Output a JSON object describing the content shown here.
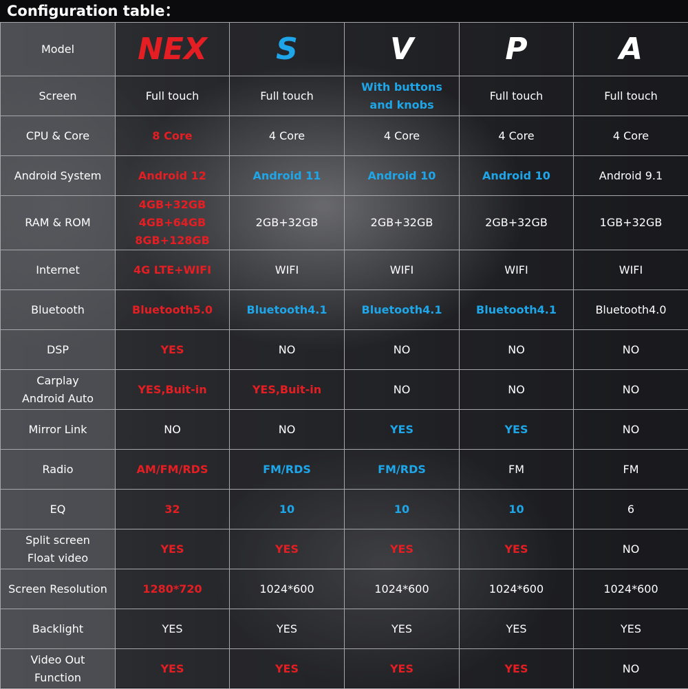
{
  "title": "Configuration table：",
  "colors": {
    "red": "#e41e22",
    "blue": "#1ea6e8",
    "white": "#ffffff"
  },
  "model": {
    "label": "Model",
    "columns": [
      {
        "name": "NEX",
        "color": "red"
      },
      {
        "name": "S",
        "color": "blue"
      },
      {
        "name": "V",
        "color": "white"
      },
      {
        "name": "P",
        "color": "white"
      },
      {
        "name": "A",
        "color": "white"
      }
    ]
  },
  "rows": [
    {
      "label": "Screen",
      "cells": [
        {
          "v": "Full touch",
          "c": "white"
        },
        {
          "v": "Full touch",
          "c": "white"
        },
        {
          "v": "With buttons\nand knobs",
          "c": "blue"
        },
        {
          "v": "Full touch",
          "c": "white"
        },
        {
          "v": "Full touch",
          "c": "white"
        }
      ]
    },
    {
      "label": "CPU & Core",
      "cells": [
        {
          "v": "8 Core",
          "c": "red"
        },
        {
          "v": "4 Core",
          "c": "white"
        },
        {
          "v": "4 Core",
          "c": "white"
        },
        {
          "v": "4 Core",
          "c": "white"
        },
        {
          "v": "4 Core",
          "c": "white"
        }
      ]
    },
    {
      "label": "Android System",
      "cells": [
        {
          "v": "Android 12",
          "c": "red"
        },
        {
          "v": "Android 11",
          "c": "blue"
        },
        {
          "v": "Android 10",
          "c": "blue"
        },
        {
          "v": "Android 10",
          "c": "blue"
        },
        {
          "v": "Android 9.1",
          "c": "white"
        }
      ]
    },
    {
      "label": "RAM & ROM",
      "cells": [
        {
          "v": "4GB+32GB\n4GB+64GB\n8GB+128GB",
          "c": "red"
        },
        {
          "v": "2GB+32GB",
          "c": "white"
        },
        {
          "v": "2GB+32GB",
          "c": "white"
        },
        {
          "v": "2GB+32GB",
          "c": "white"
        },
        {
          "v": "1GB+32GB",
          "c": "white"
        }
      ]
    },
    {
      "label": "Internet",
      "cells": [
        {
          "v": "4G LTE+WIFI",
          "c": "red"
        },
        {
          "v": "WIFI",
          "c": "white"
        },
        {
          "v": "WIFI",
          "c": "white"
        },
        {
          "v": "WIFI",
          "c": "white"
        },
        {
          "v": "WIFI",
          "c": "white"
        }
      ]
    },
    {
      "label": "Bluetooth",
      "cells": [
        {
          "v": "Bluetooth5.0",
          "c": "red"
        },
        {
          "v": "Bluetooth4.1",
          "c": "blue"
        },
        {
          "v": "Bluetooth4.1",
          "c": "blue"
        },
        {
          "v": "Bluetooth4.1",
          "c": "blue"
        },
        {
          "v": "Bluetooth4.0",
          "c": "white"
        }
      ]
    },
    {
      "label": "DSP",
      "cells": [
        {
          "v": "YES",
          "c": "red"
        },
        {
          "v": "NO",
          "c": "white"
        },
        {
          "v": "NO",
          "c": "white"
        },
        {
          "v": "NO",
          "c": "white"
        },
        {
          "v": "NO",
          "c": "white"
        }
      ]
    },
    {
      "label": "Carplay\nAndroid Auto",
      "cells": [
        {
          "v": "YES,Buit-in",
          "c": "red"
        },
        {
          "v": "YES,Buit-in",
          "c": "red"
        },
        {
          "v": "NO",
          "c": "white"
        },
        {
          "v": "NO",
          "c": "white"
        },
        {
          "v": "NO",
          "c": "white"
        }
      ]
    },
    {
      "label": "Mirror Link",
      "cells": [
        {
          "v": "NO",
          "c": "white"
        },
        {
          "v": "NO",
          "c": "white"
        },
        {
          "v": "YES",
          "c": "blue"
        },
        {
          "v": "YES",
          "c": "blue"
        },
        {
          "v": "NO",
          "c": "white"
        }
      ]
    },
    {
      "label": "Radio",
      "cells": [
        {
          "v": "AM/FM/RDS",
          "c": "red"
        },
        {
          "v": "FM/RDS",
          "c": "blue"
        },
        {
          "v": "FM/RDS",
          "c": "blue"
        },
        {
          "v": "FM",
          "c": "white"
        },
        {
          "v": "FM",
          "c": "white"
        }
      ]
    },
    {
      "label": "EQ",
      "cells": [
        {
          "v": "32",
          "c": "red"
        },
        {
          "v": "10",
          "c": "blue"
        },
        {
          "v": "10",
          "c": "blue"
        },
        {
          "v": "10",
          "c": "blue"
        },
        {
          "v": "6",
          "c": "white"
        }
      ]
    },
    {
      "label": "Split screen\nFloat video",
      "cells": [
        {
          "v": "YES",
          "c": "red"
        },
        {
          "v": "YES",
          "c": "red"
        },
        {
          "v": "YES",
          "c": "red"
        },
        {
          "v": "YES",
          "c": "red"
        },
        {
          "v": "NO",
          "c": "white"
        }
      ]
    },
    {
      "label": "Screen Resolution",
      "cells": [
        {
          "v": "1280*720",
          "c": "red"
        },
        {
          "v": "1024*600",
          "c": "white"
        },
        {
          "v": "1024*600",
          "c": "white"
        },
        {
          "v": "1024*600",
          "c": "white"
        },
        {
          "v": "1024*600",
          "c": "white"
        }
      ]
    },
    {
      "label": "Backlight",
      "cells": [
        {
          "v": "YES",
          "c": "white"
        },
        {
          "v": "YES",
          "c": "white"
        },
        {
          "v": "YES",
          "c": "white"
        },
        {
          "v": "YES",
          "c": "white"
        },
        {
          "v": "YES",
          "c": "white"
        }
      ]
    },
    {
      "label": "Video Out\nFunction",
      "cells": [
        {
          "v": "YES",
          "c": "red"
        },
        {
          "v": "YES",
          "c": "red"
        },
        {
          "v": "YES",
          "c": "red"
        },
        {
          "v": "YES",
          "c": "red"
        },
        {
          "v": "NO",
          "c": "white"
        }
      ]
    }
  ]
}
